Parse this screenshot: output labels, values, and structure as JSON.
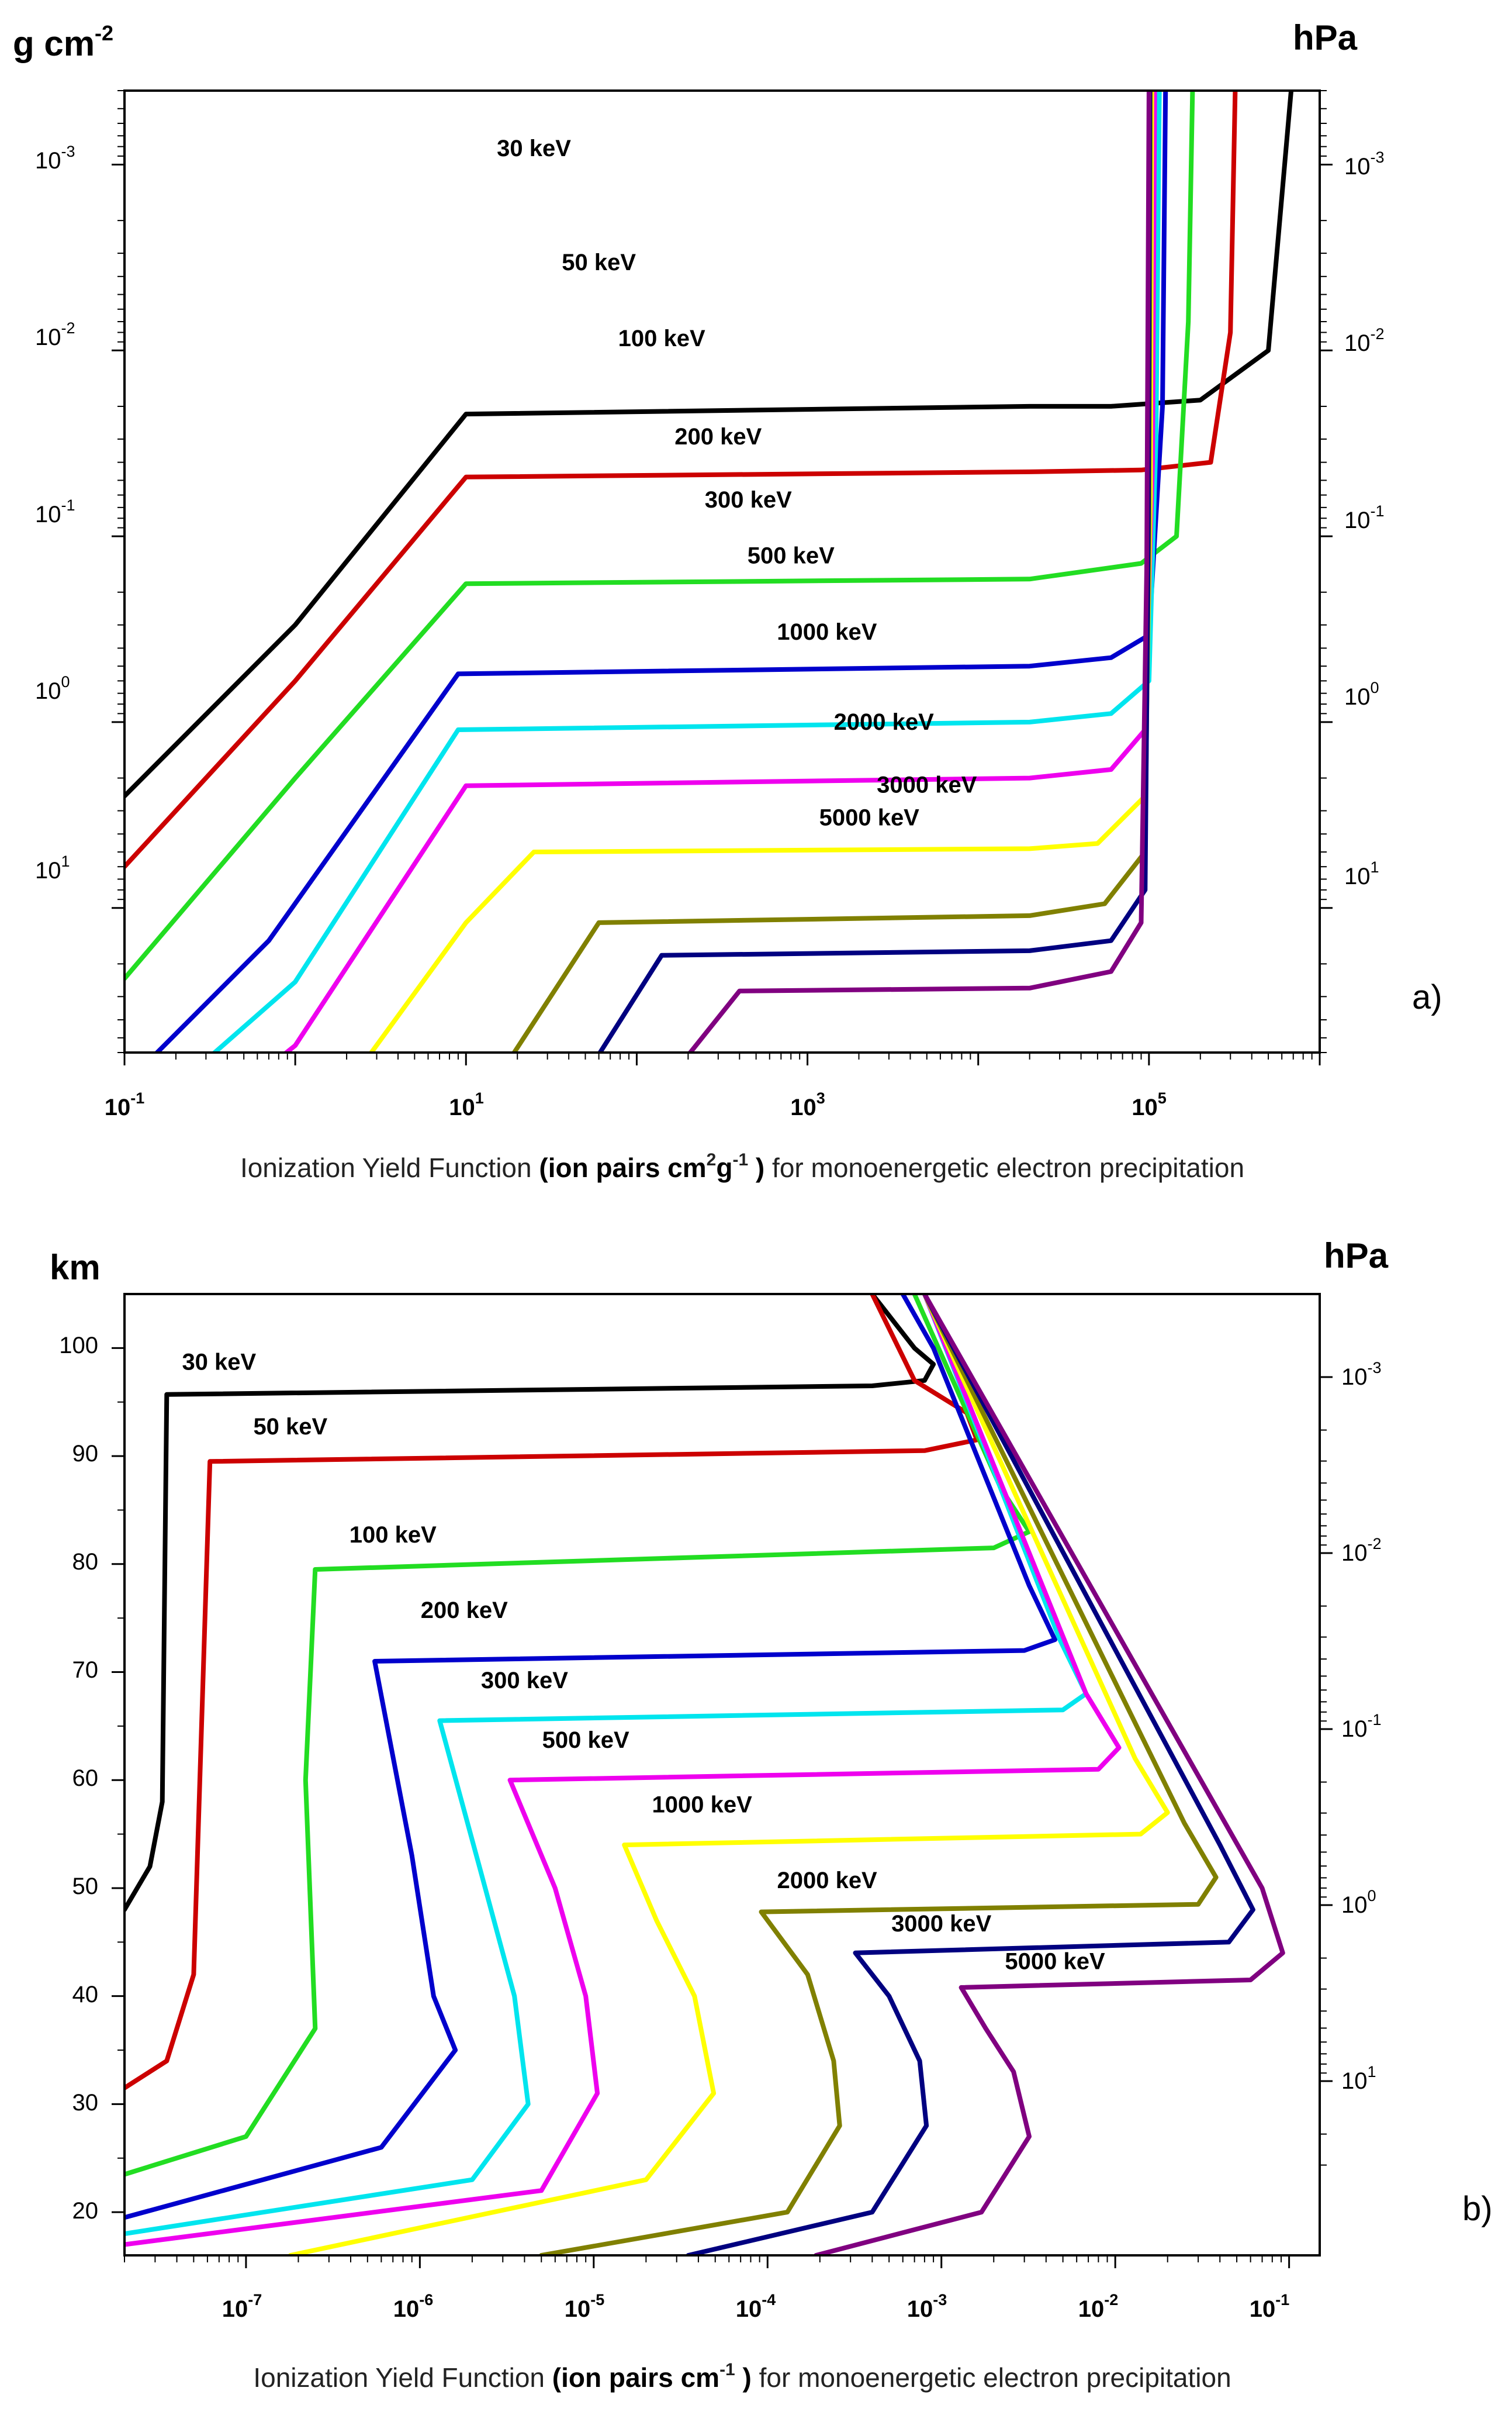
{
  "chart_data": [
    {
      "type": "line",
      "panel_label": "a)",
      "y_unit_left": "g cm",
      "y_unit_left_exp": "-2",
      "y_unit_right": "hPa",
      "xscale": "log",
      "yscale": "log",
      "xlim": [
        0.1,
        1000000
      ],
      "ylim": [
        0.0004,
        60
      ],
      "y_inverted": true,
      "xlabel_prefix": "Ionization Yield Function ",
      "xlabel_bold1": "(ion pairs cm",
      "xlabel_exp1": "2",
      "xlabel_bold2": "g",
      "xlabel_exp2": "-1",
      "xlabel_bold3": " )",
      "xlabel_suffix": " for monoenergetic electron precipitation",
      "x_ticks": [
        {
          "base": "10",
          "exp": "-1"
        },
        {
          "base": "10",
          "exp": "1"
        },
        {
          "base": "10",
          "exp": "3"
        },
        {
          "base": "10",
          "exp": "5"
        }
      ],
      "y_ticks_left": [
        {
          "base": "10",
          "exp": "-3"
        },
        {
          "base": "10",
          "exp": "-2"
        },
        {
          "base": "10",
          "exp": "-1"
        },
        {
          "base": "10",
          "exp": "0"
        },
        {
          "base": "10",
          "exp": "1"
        }
      ],
      "y_ticks_right": [
        {
          "base": "10",
          "exp": "-3"
        },
        {
          "base": "10",
          "exp": "-2"
        },
        {
          "base": "10",
          "exp": "-1"
        },
        {
          "base": "10",
          "exp": "0"
        },
        {
          "base": "10",
          "exp": "1"
        }
      ],
      "series": [
        {
          "name": "30 keV",
          "color": "#000000",
          "label_x": 25,
          "label_y": 0.0009,
          "points": [
            [
              0.1,
              2.5
            ],
            [
              1,
              0.3
            ],
            [
              10,
              0.022
            ],
            [
              20000,
              0.02
            ],
            [
              60000,
              0.02
            ],
            [
              200000,
              0.0185
            ],
            [
              500000,
              0.01
            ],
            [
              680000,
              0.0004
            ]
          ]
        },
        {
          "name": "50 keV",
          "color": "#cc0000",
          "label_x": 60,
          "label_y": 0.0037,
          "points": [
            [
              0.1,
              6
            ],
            [
              1,
              0.6
            ],
            [
              10,
              0.048
            ],
            [
              20000,
              0.045
            ],
            [
              90000,
              0.044
            ],
            [
              230000,
              0.04
            ],
            [
              300000,
              0.008
            ],
            [
              320000,
              0.0004
            ]
          ]
        },
        {
          "name": "100 keV",
          "color": "#22dd22",
          "label_x": 140,
          "label_y": 0.0095,
          "points": [
            [
              0.1,
              24
            ],
            [
              1,
              2
            ],
            [
              10,
              0.18
            ],
            [
              20000,
              0.17
            ],
            [
              90000,
              0.14
            ],
            [
              145000,
              0.1
            ],
            [
              170000,
              0.007
            ],
            [
              180000,
              0.0004
            ]
          ]
        },
        {
          "name": "200 keV",
          "color": "#0000cc",
          "label_x": 300,
          "label_y": 0.032,
          "points": [
            [
              0.1,
              90
            ],
            [
              0.7,
              15
            ],
            [
              9,
              0.55
            ],
            [
              20000,
              0.5
            ],
            [
              60000,
              0.45
            ],
            [
              100000,
              0.34
            ],
            [
              120000,
              0.02
            ],
            [
              125000,
              0.0004
            ]
          ]
        },
        {
          "name": "300 keV",
          "color": "#00e5ee",
          "label_x": 450,
          "label_y": 0.07,
          "points": [
            [
              0.1,
              160
            ],
            [
              1,
              25
            ],
            [
              9,
              1.1
            ],
            [
              20000,
              1.0
            ],
            [
              60000,
              0.9
            ],
            [
              100000,
              0.6
            ],
            [
              110000,
              0.03
            ],
            [
              115000,
              0.0004
            ]
          ]
        },
        {
          "name": "500 keV",
          "color": "#ee00ee",
          "label_x": 800,
          "label_y": 0.14,
          "points": [
            [
              0.1,
              300
            ],
            [
              1,
              55
            ],
            [
              10,
              2.2
            ],
            [
              20000,
              2.0
            ],
            [
              60000,
              1.8
            ],
            [
              95000,
              1.1
            ],
            [
              105000,
              0.04
            ],
            [
              108000,
              0.0004
            ]
          ]
        },
        {
          "name": "1000 keV",
          "color": "#ffff00",
          "label_x": 1300,
          "label_y": 0.36,
          "points": [
            [
              0.1,
              600
            ],
            [
              0.9,
              250
            ],
            [
              10,
              12
            ],
            [
              25,
              5
            ],
            [
              20000,
              4.8
            ],
            [
              50000,
              4.5
            ],
            [
              95000,
              2.5
            ],
            [
              102000,
              0.06
            ],
            [
              104000,
              0.0004
            ]
          ]
        },
        {
          "name": "2000 keV",
          "color": "#808000",
          "label_x": 2800,
          "label_y": 1.1,
          "points": [
            [
              0.1,
              1050
            ],
            [
              1,
              600
            ],
            [
              10,
              150
            ],
            [
              60,
              12
            ],
            [
              20000,
              11
            ],
            [
              55000,
              9.5
            ],
            [
              95000,
              5
            ],
            [
              100000,
              0.08
            ],
            [
              102000,
              0.0004
            ]
          ]
        },
        {
          "name": "3000 keV",
          "color": "#000080",
          "label_x": 5000,
          "label_y": 2.4,
          "points": [
            [
              0.25,
              1200
            ],
            [
              5,
              500
            ],
            [
              50,
              80
            ],
            [
              140,
              18
            ],
            [
              20000,
              17
            ],
            [
              60000,
              15
            ],
            [
              95000,
              8
            ],
            [
              99000,
              0.1
            ],
            [
              101000,
              0.0004
            ]
          ]
        },
        {
          "name": "5000 keV",
          "color": "#800080",
          "label_x": 2300,
          "label_y": 3.6,
          "points": [
            [
              1.3,
              1200
            ],
            [
              20,
              300
            ],
            [
              180,
              70
            ],
            [
              400,
              28
            ],
            [
              20000,
              27
            ],
            [
              60000,
              22
            ],
            [
              90000,
              12
            ],
            [
              97000,
              0.15
            ],
            [
              100000,
              0.0004
            ]
          ]
        }
      ]
    },
    {
      "type": "line",
      "panel_label": "b)",
      "y_unit_left": "km",
      "y_unit_right": "hPa",
      "xscale": "log",
      "yscale": "linear",
      "xlim": [
        2e-08,
        0.15
      ],
      "ylim": [
        16,
        105
      ],
      "xlabel_prefix": "Ionization Yield Function ",
      "xlabel_bold1": "(ion pairs cm",
      "xlabel_exp1": "-1",
      "xlabel_bold3": " )",
      "xlabel_suffix": " for monoenergetic electron precipitation",
      "x_ticks": [
        {
          "base": "10",
          "exp": "-7"
        },
        {
          "base": "10",
          "exp": "-6"
        },
        {
          "base": "10",
          "exp": "-5"
        },
        {
          "base": "10",
          "exp": "-4"
        },
        {
          "base": "10",
          "exp": "-3"
        },
        {
          "base": "10",
          "exp": "-2"
        },
        {
          "base": "10",
          "exp": "-1"
        }
      ],
      "y_ticks_left": [
        "20",
        "30",
        "40",
        "50",
        "60",
        "70",
        "80",
        "90",
        "100"
      ],
      "y_ticks_right": [
        {
          "base": "10",
          "exp": "-3"
        },
        {
          "base": "10",
          "exp": "-2"
        },
        {
          "base": "10",
          "exp": "-1"
        },
        {
          "base": "10",
          "exp": "0"
        },
        {
          "base": "10",
          "exp": "1"
        }
      ],
      "series": [
        {
          "name": "30 keV",
          "color": "#000000",
          "label_x": 7e-08,
          "label_y": 98,
          "points": [
            [
              2e-08,
              48
            ],
            [
              2.8e-08,
              52
            ],
            [
              3.3e-08,
              58
            ],
            [
              3.5e-08,
              95.7
            ],
            [
              0.0004,
              96.5
            ],
            [
              0.0008,
              97
            ],
            [
              0.0009,
              98.5
            ],
            [
              0.0007,
              100
            ],
            [
              0.0004,
              105
            ]
          ]
        },
        {
          "name": "50 keV",
          "color": "#cc0000",
          "label_x": 1.8e-07,
          "label_y": 92,
          "points": [
            [
              2e-08,
              31.5
            ],
            [
              3.5e-08,
              34
            ],
            [
              5e-08,
              42
            ],
            [
              6.2e-08,
              89.5
            ],
            [
              0.0008,
              90.5
            ],
            [
              0.0016,
              91.5
            ],
            [
              0.0014,
              94
            ],
            [
              0.0007,
              97
            ],
            [
              0.0004,
              105
            ]
          ]
        },
        {
          "name": "100 keV",
          "color": "#22dd22",
          "label_x": 7e-07,
          "label_y": 82,
          "points": [
            [
              2e-08,
              23.5
            ],
            [
              1e-07,
              27
            ],
            [
              2.5e-07,
              37
            ],
            [
              2.2e-07,
              60
            ],
            [
              2.5e-07,
              79.5
            ],
            [
              0.002,
              81.5
            ],
            [
              0.0032,
              83
            ],
            [
              0.0022,
              87
            ],
            [
              0.0007,
              105
            ]
          ]
        },
        {
          "name": "200 keV",
          "color": "#0000cc",
          "label_x": 1.8e-06,
          "label_y": 75,
          "points": [
            [
              2e-08,
              19.5
            ],
            [
              6e-07,
              26
            ],
            [
              1.6e-06,
              35
            ],
            [
              1.2e-06,
              40
            ],
            [
              9e-07,
              53
            ],
            [
              5.5e-07,
              71
            ],
            [
              0.003,
              72
            ],
            [
              0.0045,
              73
            ],
            [
              0.0032,
              78
            ],
            [
              0.0009,
              100
            ],
            [
              0.0006,
              105
            ]
          ]
        },
        {
          "name": "300 keV",
          "color": "#00e5ee",
          "label_x": 4e-06,
          "label_y": 68.5,
          "points": [
            [
              2e-08,
              18
            ],
            [
              2e-06,
              23
            ],
            [
              4.2e-06,
              30
            ],
            [
              3.5e-06,
              40
            ],
            [
              2.2e-06,
              52
            ],
            [
              1.3e-06,
              65.5
            ],
            [
              0.005,
              66.5
            ],
            [
              0.0068,
              68
            ],
            [
              0.0048,
              73
            ],
            [
              0.0008,
              105
            ]
          ]
        },
        {
          "name": "500 keV",
          "color": "#ee00ee",
          "label_x": 9e-06,
          "label_y": 63,
          "points": [
            [
              2e-08,
              17
            ],
            [
              5e-06,
              22
            ],
            [
              1.05e-05,
              31
            ],
            [
              9e-06,
              40
            ],
            [
              6e-06,
              50
            ],
            [
              3.3e-06,
              60
            ],
            [
              0.008,
              61
            ],
            [
              0.0105,
              63
            ],
            [
              0.0068,
              68
            ],
            [
              0.0008,
              105
            ]
          ]
        },
        {
          "name": "1000 keV",
          "color": "#ffff00",
          "label_x": 4.2e-05,
          "label_y": 57,
          "points": [
            [
              1.8e-07,
              16
            ],
            [
              2e-05,
              23
            ],
            [
              4.9e-05,
              31
            ],
            [
              3.8e-05,
              40
            ],
            [
              2.3e-05,
              47
            ],
            [
              1.5e-05,
              54
            ],
            [
              0.014,
              55
            ],
            [
              0.02,
              57
            ],
            [
              0.013,
              62
            ],
            [
              0.0008,
              105
            ]
          ]
        },
        {
          "name": "2000 keV",
          "color": "#808000",
          "label_x": 0.00022,
          "label_y": 50,
          "points": [
            [
              5e-06,
              16
            ],
            [
              0.00013,
              20
            ],
            [
              0.00026,
              28
            ],
            [
              0.00024,
              34
            ],
            [
              0.00017,
              42
            ],
            [
              9.2e-05,
              47.8
            ],
            [
              0.03,
              48.5
            ],
            [
              0.038,
              51
            ],
            [
              0.025,
              56
            ],
            [
              0.0008,
              105
            ]
          ]
        },
        {
          "name": "3000 keV",
          "color": "#000080",
          "label_x": 0.001,
          "label_y": 46,
          "points": [
            [
              3.5e-05,
              16
            ],
            [
              0.0004,
              20
            ],
            [
              0.00082,
              28
            ],
            [
              0.00075,
              34
            ],
            [
              0.0005,
              40
            ],
            [
              0.00032,
              44
            ],
            [
              0.045,
              45
            ],
            [
              0.062,
              48
            ],
            [
              0.04,
              54
            ],
            [
              0.0008,
              105
            ]
          ]
        },
        {
          "name": "5000 keV",
          "color": "#800080",
          "label_x": 0.0045,
          "label_y": 42.5,
          "points": [
            [
              0.00019,
              16
            ],
            [
              0.0017,
              20
            ],
            [
              0.0032,
              27
            ],
            [
              0.0026,
              33
            ],
            [
              0.0018,
              37
            ],
            [
              0.0013,
              40.8
            ],
            [
              0.06,
              41.5
            ],
            [
              0.092,
              44
            ],
            [
              0.07,
              50
            ],
            [
              0.0008,
              105
            ]
          ]
        }
      ]
    }
  ]
}
